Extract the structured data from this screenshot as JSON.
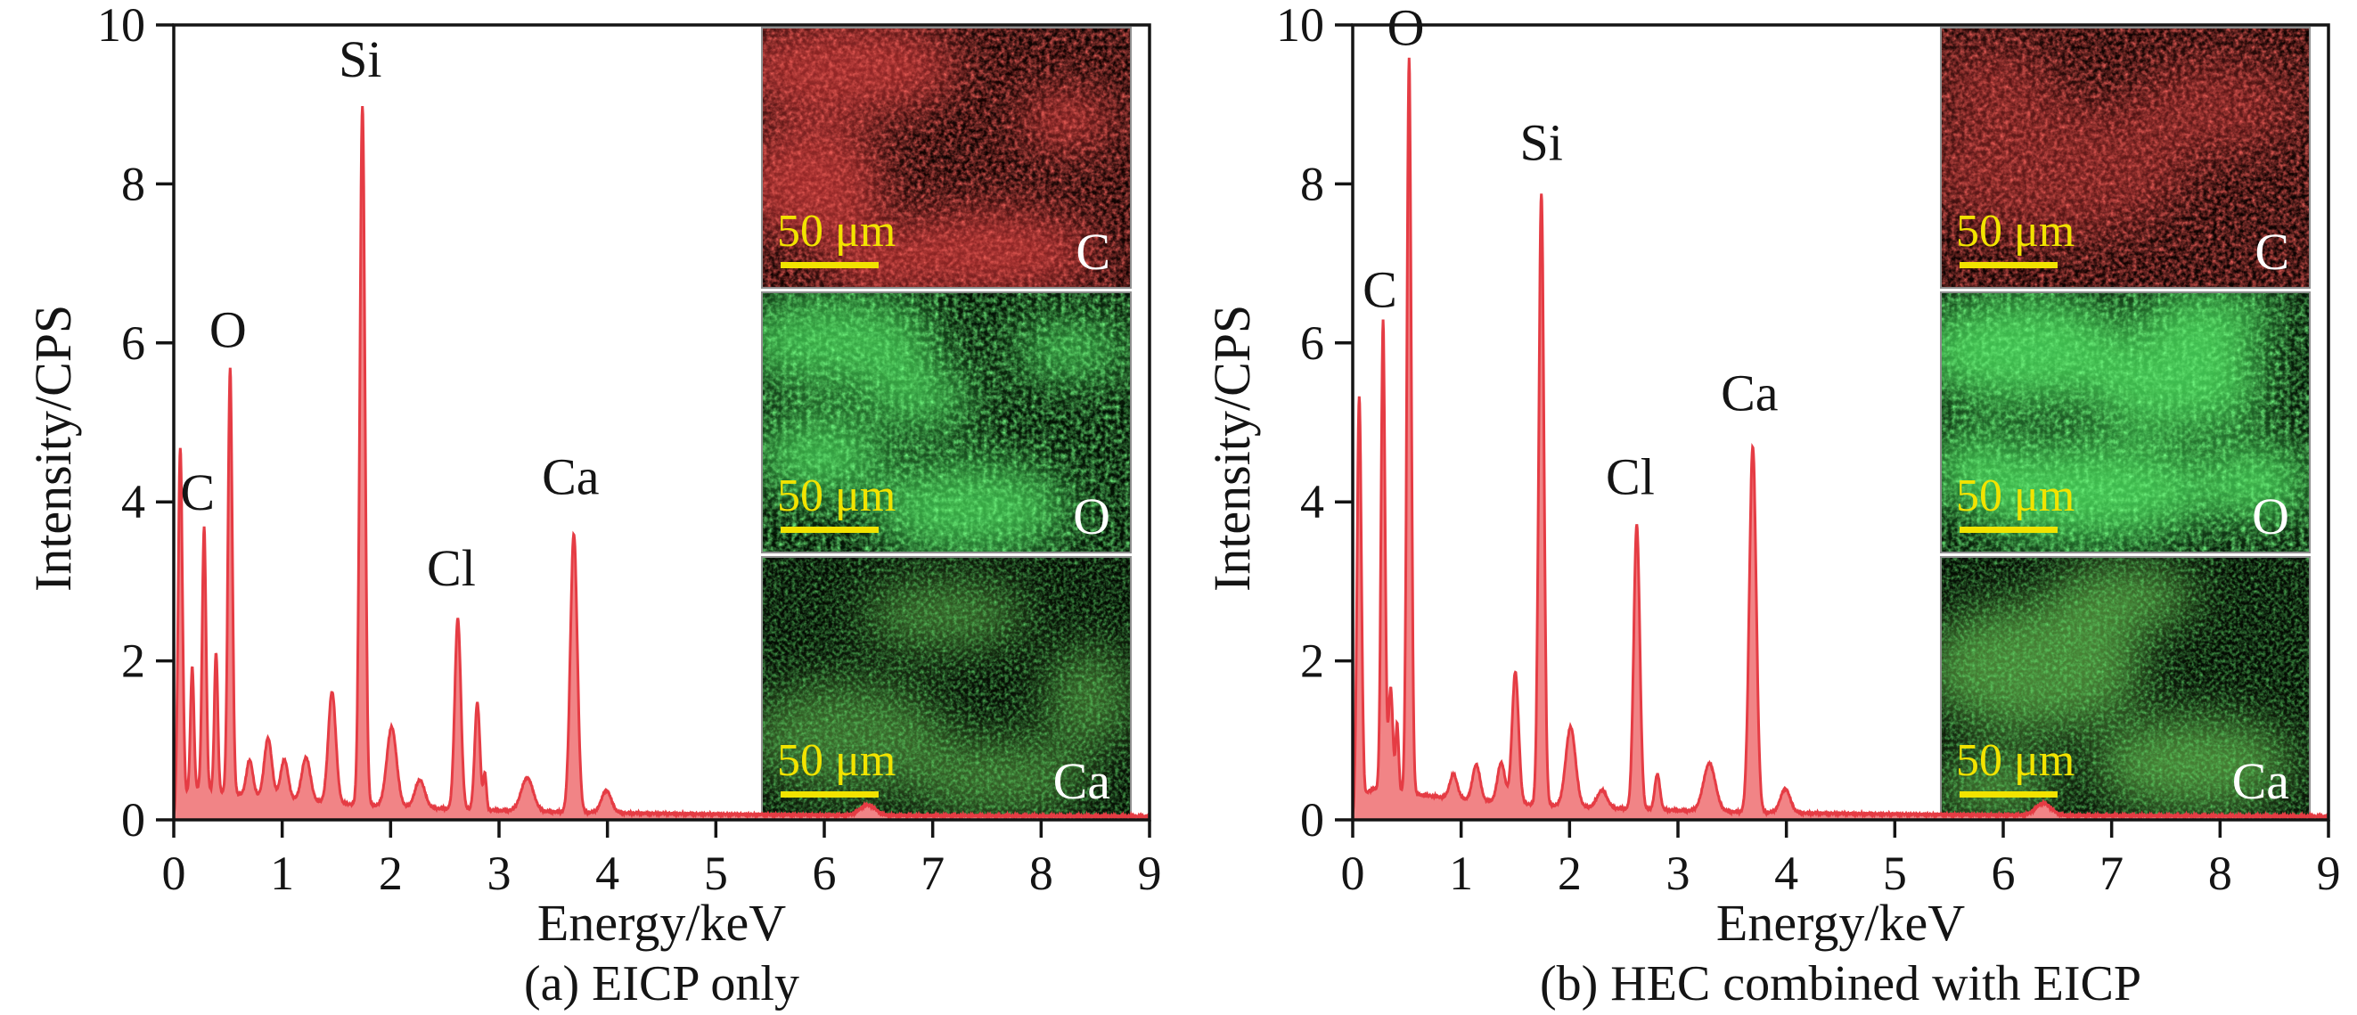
{
  "colors": {
    "spectrum_line": "#e53c44",
    "spectrum_fill": "#f18486",
    "axis": "#141414",
    "scale_bar_yellow": "#f2e300",
    "inset_label_white": "#ffffff",
    "inset_border_gray": "#8f8f8f",
    "background": "#ffffff",
    "map_c_red": "#8f1f1f",
    "map_o_green": "#3fae4e",
    "map_ca_green": "#5aa344"
  },
  "panels": [
    {
      "id": "a",
      "caption": "(a) EICP only",
      "x_label": "Energy/keV",
      "y_label": "Intensity/CPS",
      "insets": [
        {
          "element": "C",
          "scale_label": "50 μm"
        },
        {
          "element": "O",
          "scale_label": "50 μm"
        },
        {
          "element": "Ca",
          "scale_label": "50 μm"
        }
      ]
    },
    {
      "id": "b",
      "caption": "(b) HEC combined with EICP",
      "x_label": "Energy/keV",
      "y_label": "Intensity/CPS",
      "insets": [
        {
          "element": "C",
          "scale_label": "50 μm"
        },
        {
          "element": "O",
          "scale_label": "50 μm"
        },
        {
          "element": "Ca",
          "scale_label": "50 μm"
        }
      ]
    }
  ],
  "chart_data": [
    {
      "type": "area",
      "title": "(a) EICP only",
      "xlabel": "Energy/keV",
      "ylabel": "Intensity/CPS",
      "xlim": [
        0,
        9
      ],
      "ylim": [
        0,
        10
      ],
      "xticks": [
        0,
        1,
        2,
        3,
        4,
        5,
        6,
        7,
        8,
        9
      ],
      "yticks": [
        0,
        2,
        4,
        6,
        8,
        10
      ],
      "grid": false,
      "legend": null,
      "peaks": [
        {
          "energy_keV": 0.06,
          "intensity": 4.55,
          "width": 0.02
        },
        {
          "energy_keV": 0.17,
          "intensity": 1.55,
          "width": 0.016
        },
        {
          "element": "C",
          "energy_keV": 0.28,
          "intensity": 3.3,
          "width": 0.018
        },
        {
          "energy_keV": 0.39,
          "intensity": 1.75,
          "width": 0.016
        },
        {
          "element": "O",
          "energy_keV": 0.52,
          "intensity": 5.35,
          "width": 0.02
        },
        {
          "energy_keV": 0.7,
          "intensity": 0.45,
          "width": 0.03
        },
        {
          "energy_keV": 0.87,
          "intensity": 0.75,
          "width": 0.035
        },
        {
          "energy_keV": 1.02,
          "intensity": 0.5,
          "width": 0.035
        },
        {
          "energy_keV": 1.22,
          "intensity": 0.55,
          "width": 0.04
        },
        {
          "energy_keV": 1.46,
          "intensity": 1.4,
          "width": 0.035
        },
        {
          "element": "Si",
          "energy_keV": 1.74,
          "intensity": 8.8,
          "width": 0.024
        },
        {
          "energy_keV": 2.01,
          "intensity": 1.0,
          "width": 0.045
        },
        {
          "energy_keV": 2.27,
          "intensity": 0.35,
          "width": 0.045
        },
        {
          "element": "Cl",
          "energy_keV": 2.62,
          "intensity": 2.4,
          "width": 0.028
        },
        {
          "energy_keV": 2.8,
          "intensity": 1.35,
          "width": 0.024
        },
        {
          "energy_keV": 2.87,
          "intensity": 0.45,
          "width": 0.014
        },
        {
          "energy_keV": 3.26,
          "intensity": 0.42,
          "width": 0.055
        },
        {
          "element": "Ca",
          "energy_keV": 3.69,
          "intensity": 3.5,
          "width": 0.032
        },
        {
          "energy_keV": 3.99,
          "intensity": 0.28,
          "width": 0.045
        },
        {
          "energy_keV": 6.4,
          "intensity": 0.13,
          "width": 0.07
        }
      ],
      "baseline": {
        "a1": 0.32,
        "tau1": 1.4,
        "a2": 0.1,
        "tau2": 6.0,
        "c": 0.02,
        "onset": 0.1
      },
      "annotations": [
        {
          "text": "C",
          "x": 0.22,
          "y": 3.9
        },
        {
          "text": "O",
          "x": 0.5,
          "y": 5.95
        },
        {
          "text": "Si",
          "x": 1.72,
          "y": 9.35
        },
        {
          "text": "Cl",
          "x": 2.56,
          "y": 2.95
        },
        {
          "text": "Ca",
          "x": 3.66,
          "y": 4.1
        }
      ]
    },
    {
      "type": "area",
      "title": "(b) HEC combined with EICP",
      "xlabel": "Energy/keV",
      "ylabel": "Intensity/CPS",
      "xlim": [
        0,
        9
      ],
      "ylim": [
        0,
        10
      ],
      "xticks": [
        0,
        1,
        2,
        3,
        4,
        5,
        6,
        7,
        8,
        9
      ],
      "yticks": [
        0,
        2,
        4,
        6,
        8,
        10
      ],
      "grid": false,
      "legend": null,
      "peaks": [
        {
          "energy_keV": 0.06,
          "intensity": 5.2,
          "width": 0.02
        },
        {
          "element": "C",
          "energy_keV": 0.28,
          "intensity": 5.9,
          "width": 0.018
        },
        {
          "energy_keV": 0.35,
          "intensity": 1.3,
          "width": 0.02
        },
        {
          "energy_keV": 0.41,
          "intensity": 0.85,
          "width": 0.014
        },
        {
          "element": "O",
          "energy_keV": 0.52,
          "intensity": 9.25,
          "width": 0.02
        },
        {
          "energy_keV": 0.93,
          "intensity": 0.3,
          "width": 0.035
        },
        {
          "energy_keV": 1.14,
          "intensity": 0.45,
          "width": 0.035
        },
        {
          "energy_keV": 1.37,
          "intensity": 0.5,
          "width": 0.035
        },
        {
          "energy_keV": 1.5,
          "intensity": 1.65,
          "width": 0.03
        },
        {
          "element": "Si",
          "energy_keV": 1.74,
          "intensity": 7.7,
          "width": 0.024
        },
        {
          "energy_keV": 2.01,
          "intensity": 1.0,
          "width": 0.045
        },
        {
          "energy_keV": 2.3,
          "intensity": 0.22,
          "width": 0.045
        },
        {
          "element": "Cl",
          "energy_keV": 2.62,
          "intensity": 3.58,
          "width": 0.028
        },
        {
          "energy_keV": 2.81,
          "intensity": 0.45,
          "width": 0.024
        },
        {
          "energy_keV": 3.29,
          "intensity": 0.6,
          "width": 0.055
        },
        {
          "element": "Ca",
          "energy_keV": 3.69,
          "intensity": 4.6,
          "width": 0.032
        },
        {
          "energy_keV": 3.99,
          "intensity": 0.3,
          "width": 0.045
        },
        {
          "energy_keV": 6.37,
          "intensity": 0.15,
          "width": 0.07
        }
      ],
      "baseline": {
        "a1": 0.32,
        "tau1": 1.4,
        "a2": 0.1,
        "tau2": 6.0,
        "c": 0.02,
        "onset": 0.1
      },
      "annotations": [
        {
          "text": "C",
          "x": 0.25,
          "y": 6.45
        },
        {
          "text": "O",
          "x": 0.49,
          "y": 9.75
        },
        {
          "text": "Si",
          "x": 1.74,
          "y": 8.3
        },
        {
          "text": "Cl",
          "x": 2.56,
          "y": 4.1
        },
        {
          "text": "Ca",
          "x": 3.66,
          "y": 5.15
        }
      ]
    }
  ]
}
